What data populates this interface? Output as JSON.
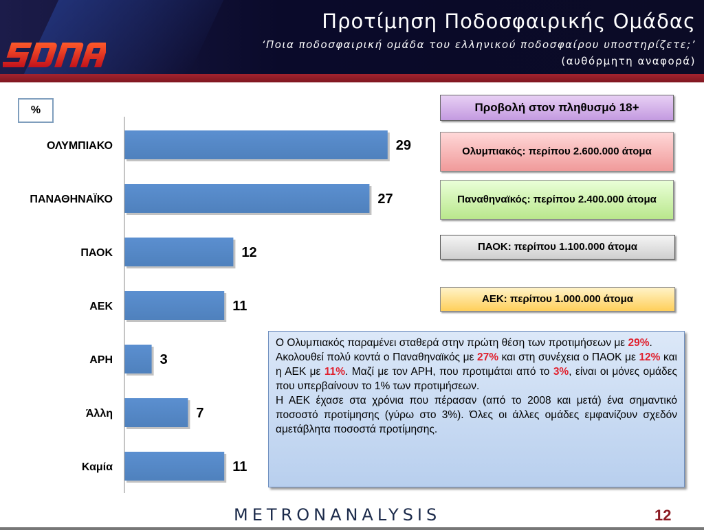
{
  "header": {
    "title": "Προτίμηση Ποδοσφαιρικής Ομάδας",
    "subtitle": "‘Ποια ποδοσφαιρική ομάδα του ελληνικού ποδοσφαίρου υποστηρίζετε;’",
    "subtitle2": "(αυθόρμητη αναφορά)",
    "logo_text": "SDNA"
  },
  "unit_label": "%",
  "chart_data": {
    "type": "bar",
    "orientation": "horizontal",
    "categories": [
      "ΟΛΥΜΠΙΑΚΟ",
      "ΠΑΝΑΘΗΝΑΪΚΟ",
      "ΠΑΟΚ",
      "ΑΕΚ",
      "ΑΡΗ",
      "Άλλη",
      "Καμία"
    ],
    "values": [
      29,
      27,
      12,
      11,
      3,
      7,
      11
    ],
    "xlim": [
      0,
      30
    ],
    "bar_color": "#4f81bd",
    "grid": false
  },
  "callouts": {
    "projection": "Προβολή στον πληθυσμό 18+",
    "olympiakos": "Ολυμπιακός: περίπου 2.600.000 άτομα",
    "panathinaikos": "Παναθηναϊκός: περίπου 2.400.000 άτομα",
    "paok": "ΠΑΟΚ: περίπου 1.100.000 άτομα",
    "aek": "ΑΕΚ: περίπου 1.000.000 άτομα"
  },
  "note": {
    "p1a": "Ο Ολυμπιακός παραμένει σταθερά στην πρώτη θέση των προτιμήσεων με ",
    "p1v": "29%",
    "p1b": ".",
    "p2a": "Ακολουθεί πολύ κοντά ο Παναθηναϊκός με ",
    "p2v1": "27%",
    "p2b": " και στη συνέχεια ο ΠΑΟΚ με ",
    "p2v2": "12%",
    "p2c": " και η ΑΕΚ με ",
    "p2v3": "11%",
    "p2d": ". Μαζί με τον ΑΡΗ, που προτιμάται από το ",
    "p2v4": "3%",
    "p2e": ", είναι οι μόνες ομάδες που υπερβαίνουν το 1% των προτιμήσεων.",
    "p3": "Η ΑΕΚ έχασε στα χρόνια που πέρασαν (από το 2008 και μετά) ένα σημαντικό ποσοστό προτίμησης (γύρω στο 3%). Όλες οι άλλες ομάδες εμφανίζουν σχεδόν αμετάβλητα ποσοστά προτίμησης."
  },
  "footer": {
    "brand_a": "METRON",
    "brand_b": "ANALYSIS",
    "page_number": "12"
  }
}
